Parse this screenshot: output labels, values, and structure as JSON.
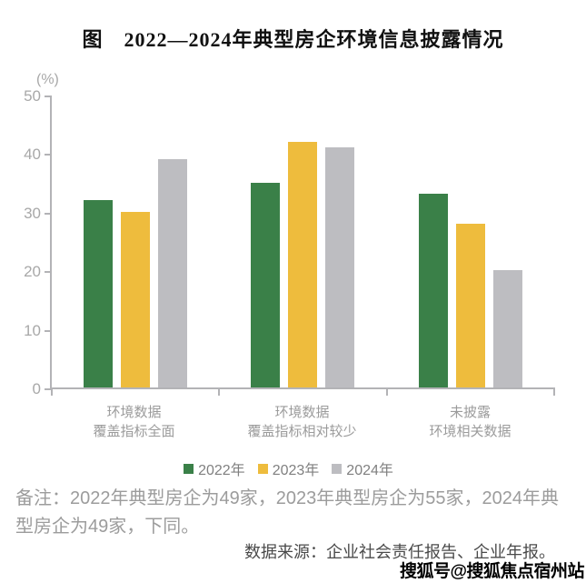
{
  "title": "图　2022—2024年典型房企环境信息披露情况",
  "chart_data": {
    "type": "bar",
    "title": "2022—2024年典型房企环境信息披露情况",
    "unit_label": "(%)",
    "categories": [
      [
        "环境数据",
        "覆盖指标全面"
      ],
      [
        "环境数据",
        "覆盖指标相对较少"
      ],
      [
        "未披露",
        "环境相关数据"
      ]
    ],
    "series": [
      {
        "name": "2022年",
        "color": "#3a8048",
        "values": [
          32,
          35,
          33
        ]
      },
      {
        "name": "2023年",
        "color": "#eebc3d",
        "values": [
          30,
          42,
          28
        ]
      },
      {
        "name": "2024年",
        "color": "#bdbdc1",
        "values": [
          39,
          41,
          20
        ]
      }
    ],
    "ylim": [
      0,
      50
    ],
    "yticks": [
      0,
      10,
      20,
      30,
      40,
      50
    ],
    "grid": false,
    "legend_position": "bottom",
    "xlabel": "",
    "ylabel": "(%)"
  },
  "note": "备注：2022年典型房企为49家，2023年典型房企为55家，2024年典型房企为49家，下同。",
  "source": "数据来源：企业社会责任报告、企业年报。",
  "watermark": "搜狐号@搜狐焦点宿州站",
  "colors": {
    "green": "#3a8048",
    "yellow": "#eebc3d",
    "gray": "#bdbdc1",
    "axis": "#b3b3b6",
    "tick_label": "#a8a8a8",
    "category_label": "#9b9b9b",
    "legend_label": "#808080",
    "note": "#9c9c9c",
    "source": "#4a4a4a",
    "title": "#111111"
  }
}
